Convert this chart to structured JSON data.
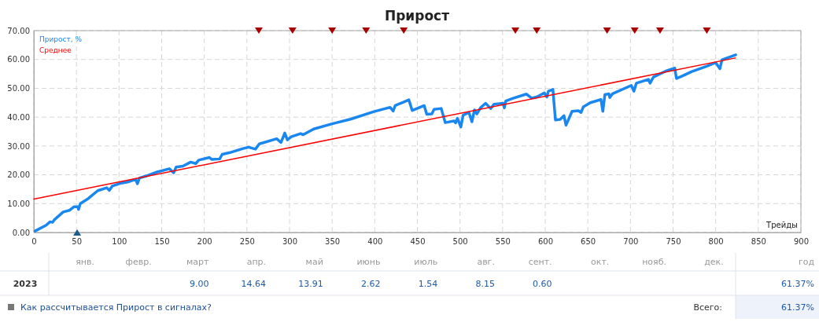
{
  "chart_data": {
    "type": "line",
    "title": "Прирост",
    "xlabel": "Трейды",
    "xlim": [
      0,
      900
    ],
    "xticks": [
      0,
      50,
      100,
      150,
      200,
      250,
      300,
      350,
      400,
      450,
      500,
      550,
      600,
      650,
      700,
      750,
      800,
      850,
      900
    ],
    "ylim": [
      0,
      70
    ],
    "yticks": [
      {
        "value": 0,
        "label": "0.00"
      },
      {
        "value": 10,
        "label": "10.00"
      },
      {
        "value": 20,
        "label": "20.00"
      },
      {
        "value": 30,
        "label": "30.00"
      },
      {
        "value": 40,
        "label": "40.00"
      },
      {
        "value": 50,
        "label": "50.00"
      },
      {
        "value": 60,
        "label": "60.00"
      },
      {
        "value": 70,
        "label": "70.00"
      }
    ],
    "grid": true,
    "legend": "top left",
    "series": [
      {
        "name": "Прирост, %",
        "color": "#1a87f0",
        "x": [
          1.5,
          14.5,
          19,
          22,
          24,
          34.5,
          42,
          47,
          51.5,
          52.5,
          54.5,
          64,
          75,
          85.5,
          88.5,
          92,
          101,
          110,
          119.5,
          121.5,
          124,
          132,
          144,
          159,
          164,
          167,
          175,
          184,
          190,
          193.5,
          206,
          209,
          218,
          221,
          230,
          245.5,
          252,
          260,
          264.5,
          285,
          290,
          294.4,
          297.5,
          302,
          313,
          316,
          328.4,
          350,
          371.6,
          399,
          418,
          421.6,
          424,
          440,
          444,
          458,
          461,
          467,
          469.6,
          478,
          482.7,
          493,
          494.8,
          497,
          501,
          503.7,
          510.5,
          514,
          517,
          519.8,
          524,
          530,
          536,
          540,
          550.6,
          552,
          553.7,
          561,
          578,
          584,
          590,
          599,
          602,
          603.7,
          609,
          612,
          617.6,
          622,
          624.4,
          631.5,
          639,
          642,
          644.8,
          653,
          665.4,
          667.6,
          670,
          674.7,
          675.7,
          679,
          701,
          704,
          707,
          721,
          723,
          727,
          741,
          752,
          754,
          759.6,
          772,
          790,
          800,
          805,
          807.4,
          823.5
        ],
        "values": [
          0.5,
          2.5,
          3.7,
          3.5,
          4.4,
          7.1,
          7.7,
          8.9,
          8.9,
          8,
          10,
          11.8,
          14.5,
          15.5,
          14.6,
          16.1,
          17,
          17.5,
          18.4,
          16.9,
          18.9,
          19.6,
          20.9,
          22.1,
          20.7,
          22.7,
          23,
          24.4,
          23.9,
          25.1,
          26,
          25.3,
          25.5,
          27.1,
          27.7,
          29.1,
          29.6,
          28.9,
          30.7,
          32.5,
          31.2,
          34.5,
          32.1,
          33.2,
          34.3,
          33.9,
          35.9,
          37.7,
          39.3,
          41.9,
          43.4,
          42.1,
          44,
          46,
          42.3,
          44,
          41,
          41.1,
          42.7,
          43,
          38.1,
          38.7,
          38,
          39.6,
          36.6,
          40.7,
          41.6,
          38.4,
          42.5,
          41.1,
          43.2,
          44.8,
          43,
          44.5,
          44.8,
          43.2,
          45.6,
          46.4,
          48,
          46.6,
          47,
          48.4,
          47,
          49,
          49.6,
          39,
          39.2,
          40.5,
          37.2,
          42,
          42.2,
          41.6,
          43.6,
          45,
          46.1,
          42,
          47.8,
          48.1,
          46.8,
          48.1,
          51,
          49,
          51.8,
          53.1,
          51.8,
          53.9,
          55.9,
          57,
          53.4,
          54.1,
          55.8,
          57.7,
          58.9,
          56.8,
          59.9,
          61.6
        ]
      },
      {
        "name": "Среднее",
        "color": "#ff0000",
        "x": [
          0,
          823
        ],
        "values": [
          11.6,
          60.5
        ]
      },
      {
        "type": "scatter",
        "marker": "triangle",
        "color": "#a80000",
        "x": [
          264,
          303.5,
          350,
          389.8,
          434,
          565,
          590,
          672.6,
          705,
          734.7,
          789.6
        ],
        "values": [
          70,
          70,
          70,
          70,
          70,
          70,
          70,
          70,
          70,
          70,
          70
        ]
      },
      {
        "type": "scatter",
        "marker": "triangle",
        "color": "#1a5e8c",
        "x": [
          50.8
        ],
        "values": [
          0
        ]
      }
    ],
    "annotations": [
      "янв.",
      "февр.",
      "март",
      "апр.",
      "май",
      "июнь",
      "июль",
      "авг.",
      "сент.",
      "окт.",
      "нояб.",
      "дек.",
      "год",
      "2023",
      "9.00",
      "14.64",
      "13.91",
      "2.62",
      "1.54",
      "8.15",
      "0.60",
      "61.37%",
      "Как рассчитывается Прирост в сигналах?",
      "Всего:",
      "61.37%"
    ]
  }
}
